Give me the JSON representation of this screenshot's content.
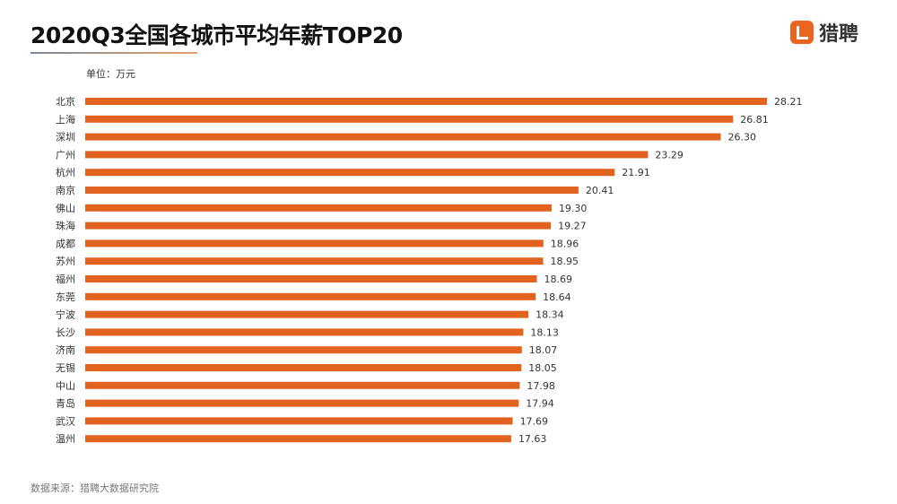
{
  "chart_data": {
    "type": "bar",
    "orientation": "horizontal",
    "title": "2020Q3全国各城市平均年薪TOP20",
    "unit_label": "单位：万元",
    "categories": [
      "北京",
      "上海",
      "深圳",
      "广州",
      "杭州",
      "南京",
      "佛山",
      "珠海",
      "成都",
      "苏州",
      "福州",
      "东莞",
      "宁波",
      "长沙",
      "济南",
      "无锡",
      "中山",
      "青岛",
      "武汉",
      "温州"
    ],
    "values": [
      28.21,
      26.81,
      26.3,
      23.29,
      21.91,
      20.41,
      19.3,
      19.27,
      18.96,
      18.95,
      18.69,
      18.64,
      18.34,
      18.13,
      18.07,
      18.05,
      17.98,
      17.94,
      17.69,
      17.63
    ],
    "value_labels": [
      "28.21",
      "26.81",
      "26.30",
      "23.29",
      "21.91",
      "20.41",
      "19.30",
      "19.27",
      "18.96",
      "18.95",
      "18.69",
      "18.64",
      "18.34",
      "18.13",
      "18.07",
      "18.05",
      "17.98",
      "17.94",
      "17.69",
      "17.63"
    ],
    "xlim": [
      0,
      30
    ],
    "grid": false,
    "bar_color": "#e2621f"
  },
  "logo": {
    "text": "猎聘",
    "color": "#e8641f"
  },
  "source": "数据来源：猎聘大数据研究院"
}
